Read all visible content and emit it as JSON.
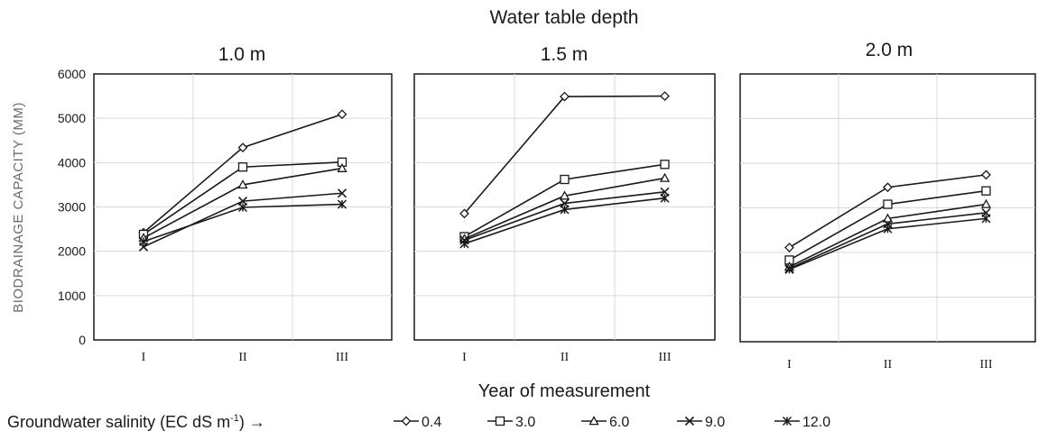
{
  "figure": {
    "super_title": "Water table depth",
    "xlabel": "Year of measurement",
    "ylabel": "BIODRAINAGE CAPACITY (MM)",
    "legend_title_prefix": "Groundwater salinity (EC dS m",
    "legend_title_sup": "-1",
    "legend_title_suffix": ") →"
  },
  "chart_data": [
    {
      "type": "line",
      "title": "1.0 m",
      "x": [
        "I",
        "II",
        "III"
      ],
      "ylim": [
        0,
        6000
      ],
      "yticks": [
        0,
        1000,
        2000,
        3000,
        4000,
        5000,
        6000
      ],
      "grid": true,
      "series": [
        {
          "name": "0.4",
          "marker": "diamond",
          "values": [
            2420,
            4340,
            5090
          ]
        },
        {
          "name": "3.0",
          "marker": "square",
          "values": [
            2380,
            3900,
            4010
          ]
        },
        {
          "name": "6.0",
          "marker": "triangle",
          "values": [
            2300,
            3500,
            3870
          ]
        },
        {
          "name": "9.0",
          "marker": "x",
          "values": [
            2100,
            3130,
            3310
          ]
        },
        {
          "name": "12.0",
          "marker": "asterisk",
          "values": [
            2220,
            2990,
            3060
          ]
        }
      ]
    },
    {
      "type": "line",
      "title": "1.5 m",
      "x": [
        "I",
        "II",
        "III"
      ],
      "ylim": [
        0,
        6000
      ],
      "grid": true,
      "series": [
        {
          "name": "0.4",
          "marker": "diamond",
          "values": [
            2850,
            5490,
            5500
          ]
        },
        {
          "name": "3.0",
          "marker": "square",
          "values": [
            2330,
            3620,
            3960
          ]
        },
        {
          "name": "6.0",
          "marker": "triangle",
          "values": [
            2280,
            3250,
            3650
          ]
        },
        {
          "name": "9.0",
          "marker": "x",
          "values": [
            2250,
            3080,
            3340
          ]
        },
        {
          "name": "12.0",
          "marker": "asterisk",
          "values": [
            2170,
            2940,
            3200
          ]
        }
      ]
    },
    {
      "type": "line",
      "title": "2.0 m",
      "x": [
        "I",
        "II",
        "III"
      ],
      "ylim": [
        0,
        6000
      ],
      "grid": true,
      "series": [
        {
          "name": "0.4",
          "marker": "diamond",
          "values": [
            2110,
            3460,
            3740
          ]
        },
        {
          "name": "3.0",
          "marker": "square",
          "values": [
            1830,
            3080,
            3380
          ]
        },
        {
          "name": "6.0",
          "marker": "triangle",
          "values": [
            1680,
            2760,
            3080
          ]
        },
        {
          "name": "9.0",
          "marker": "x",
          "values": [
            1640,
            2640,
            2890
          ]
        },
        {
          "name": "12.0",
          "marker": "asterisk",
          "values": [
            1620,
            2530,
            2760
          ]
        }
      ]
    }
  ]
}
